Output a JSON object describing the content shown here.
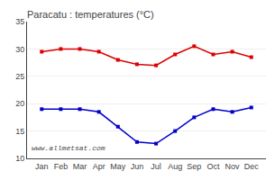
{
  "chart_data": {
    "type": "line",
    "title": "Paracatu : temperatures (°C)",
    "categories": [
      "Jan",
      "Feb",
      "Mar",
      "Apr",
      "May",
      "Jun",
      "Jul",
      "Aug",
      "Sep",
      "Oct",
      "Nov",
      "Dec"
    ],
    "series": [
      {
        "color": "#dd0000",
        "marker": "square",
        "values": [
          29.5,
          30.0,
          30.0,
          29.5,
          28.0,
          27.2,
          27.0,
          29.0,
          30.5,
          29.0,
          29.5,
          28.5
        ]
      },
      {
        "color": "#0000cc",
        "marker": "square",
        "values": [
          19.0,
          19.0,
          19.0,
          18.5,
          15.8,
          13.0,
          12.7,
          15.0,
          17.5,
          19.0,
          18.5,
          19.3
        ]
      }
    ],
    "ylim": [
      10,
      35
    ],
    "yticks": [
      10,
      15,
      20,
      25,
      30,
      35
    ],
    "grid": true,
    "annotations": [
      "www.allmetsat.com"
    ]
  }
}
